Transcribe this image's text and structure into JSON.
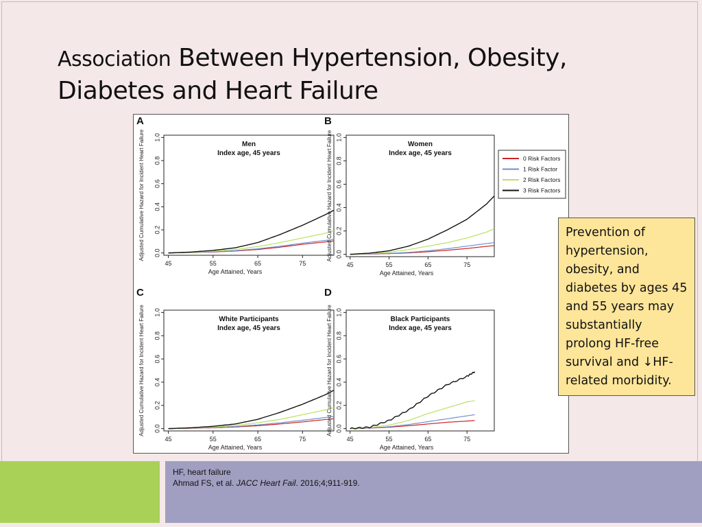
{
  "slide": {
    "title_part1": "Association",
    "title_part2": " Between Hypertension, Obesity,",
    "title_line2": "Diabetes and Heart Failure",
    "callout_text": "Prevention of hypertension, obesity, and diabetes by ages 45 and 55 years may substantially prolong HF-free survival and ↓HF-related morbidity.",
    "footer": {
      "abbrev": "HF, heart failure",
      "cite_authors": "Ahmad FS, et al. ",
      "cite_journal": "JACC Heart Fail",
      "cite_rest": ". 2016;4;911-919."
    },
    "colors": {
      "background": "#f5e8e8",
      "footer_green": "#a9d158",
      "footer_blue": "#a09fc1",
      "callout_fill": "#fde59a"
    }
  },
  "legend": {
    "entries": [
      {
        "label": "0 Risk Factors",
        "color": "#cc2222"
      },
      {
        "label": "1 Risk Factor",
        "color": "#6f8fcf"
      },
      {
        "label": "2 Risk Factors",
        "color": "#b7e35c"
      },
      {
        "label": "3 Risk Factors",
        "color": "#111111"
      }
    ],
    "placement": "right of panel B"
  },
  "chart_data": [
    {
      "type": "line",
      "panel": "A",
      "title": "Men",
      "subtitle": "Index age, 45 years",
      "xlabel": "Age Attained, Years",
      "ylabel": "Adjusted Cumulative Hazard for Incident Heart Failure",
      "xlim": [
        44,
        82
      ],
      "ylim": [
        -0.02,
        1.02
      ],
      "xticks": [
        45,
        55,
        65,
        75
      ],
      "yticks": [
        0.0,
        0.2,
        0.4,
        0.6,
        0.8,
        1.0
      ],
      "x": [
        45,
        50,
        55,
        60,
        65,
        70,
        75,
        80,
        82
      ],
      "series": [
        {
          "name": "0 Risk Factors",
          "values": [
            0,
            0.003,
            0.008,
            0.017,
            0.03,
            0.05,
            0.075,
            0.095,
            0.105
          ]
        },
        {
          "name": "1 Risk Factor",
          "values": [
            0,
            0.004,
            0.01,
            0.02,
            0.036,
            0.058,
            0.085,
            0.108,
            0.118
          ]
        },
        {
          "name": "2 Risk Factors",
          "values": [
            0,
            0.005,
            0.014,
            0.03,
            0.055,
            0.09,
            0.13,
            0.17,
            0.19
          ]
        },
        {
          "name": "3 Risk Factors",
          "values": [
            0,
            0.008,
            0.022,
            0.045,
            0.09,
            0.16,
            0.24,
            0.33,
            0.37
          ]
        }
      ]
    },
    {
      "type": "line",
      "panel": "B",
      "title": "Women",
      "subtitle": "Index age, 45 years",
      "xlabel": "Age Attained, Years",
      "ylabel": "Adjusted Cumulative Hazard for Incident Heart Failure",
      "xlim": [
        44,
        82
      ],
      "ylim": [
        -0.02,
        1.02
      ],
      "xticks": [
        45,
        55,
        65,
        75
      ],
      "yticks": [
        0.0,
        0.2,
        0.4,
        0.6,
        0.8,
        1.0
      ],
      "x": [
        45,
        50,
        55,
        60,
        65,
        70,
        75,
        80,
        82
      ],
      "series": [
        {
          "name": "0 Risk Factors",
          "values": [
            0,
            0.002,
            0.006,
            0.012,
            0.022,
            0.035,
            0.05,
            0.068,
            0.075
          ]
        },
        {
          "name": "1 Risk Factor",
          "values": [
            0,
            0.003,
            0.008,
            0.016,
            0.03,
            0.048,
            0.07,
            0.092,
            0.1
          ]
        },
        {
          "name": "2 Risk Factors",
          "values": [
            0,
            0.006,
            0.018,
            0.04,
            0.07,
            0.1,
            0.14,
            0.19,
            0.22
          ]
        },
        {
          "name": "3 Risk Factors",
          "values": [
            0,
            0.01,
            0.03,
            0.07,
            0.13,
            0.21,
            0.3,
            0.43,
            0.5
          ]
        }
      ]
    },
    {
      "type": "line",
      "panel": "C",
      "title": "White Participants",
      "subtitle": "Index age, 45 years",
      "xlabel": "Age Attained, Years",
      "ylabel": "Adjusted Cumulative Hazard for Incident Heart Failure",
      "xlim": [
        44,
        82
      ],
      "ylim": [
        -0.02,
        1.02
      ],
      "xticks": [
        45,
        55,
        65,
        75
      ],
      "yticks": [
        0.0,
        0.2,
        0.4,
        0.6,
        0.8,
        1.0
      ],
      "x": [
        45,
        50,
        55,
        60,
        65,
        70,
        75,
        80,
        82
      ],
      "series": [
        {
          "name": "0 Risk Factors",
          "values": [
            0,
            0.003,
            0.007,
            0.014,
            0.025,
            0.04,
            0.058,
            0.078,
            0.085
          ]
        },
        {
          "name": "1 Risk Factor",
          "values": [
            0,
            0.004,
            0.009,
            0.018,
            0.032,
            0.05,
            0.072,
            0.095,
            0.105
          ]
        },
        {
          "name": "2 Risk Factors",
          "values": [
            0,
            0.005,
            0.013,
            0.028,
            0.05,
            0.08,
            0.12,
            0.16,
            0.18
          ]
        },
        {
          "name": "3 Risk Factors",
          "values": [
            0,
            0.007,
            0.02,
            0.04,
            0.08,
            0.14,
            0.21,
            0.29,
            0.33
          ]
        }
      ]
    },
    {
      "type": "line",
      "panel": "D",
      "title": "Black Participants",
      "subtitle": "Index age, 45 years",
      "xlabel": "Age Attained, Years",
      "ylabel": "Adjusted Cumulative Hazard for Incident Heart Failure",
      "xlim": [
        44,
        82
      ],
      "ylim": [
        -0.02,
        1.02
      ],
      "xticks": [
        45,
        55,
        65,
        75
      ],
      "yticks": [
        0.0,
        0.2,
        0.4,
        0.6,
        0.8,
        1.0
      ],
      "x": [
        45,
        50,
        55,
        60,
        65,
        70,
        75,
        77
      ],
      "series": [
        {
          "name": "0 Risk Factors",
          "values": [
            0,
            0.004,
            0.012,
            0.025,
            0.04,
            0.055,
            0.065,
            0.07
          ]
        },
        {
          "name": "1 Risk Factor",
          "values": [
            0,
            0.005,
            0.016,
            0.035,
            0.06,
            0.085,
            0.11,
            0.12
          ]
        },
        {
          "name": "2 Risk Factors",
          "values": [
            0,
            0.008,
            0.03,
            0.07,
            0.13,
            0.18,
            0.23,
            0.24
          ]
        },
        {
          "name": "3 Risk Factors",
          "values": [
            0,
            0.012,
            0.07,
            0.16,
            0.28,
            0.38,
            0.45,
            0.49
          ]
        }
      ]
    }
  ]
}
